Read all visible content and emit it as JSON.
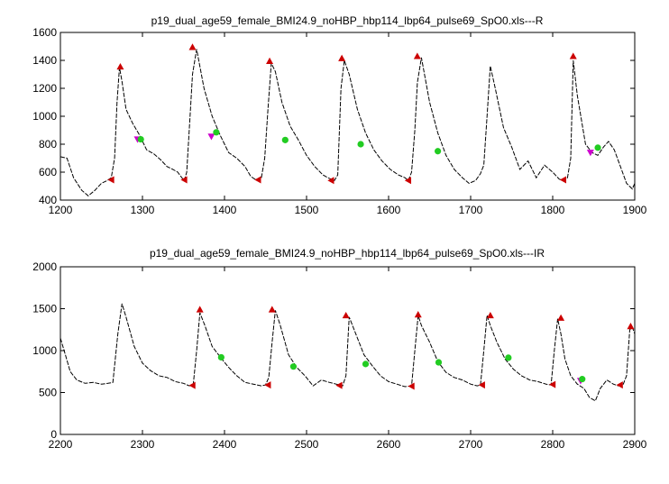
{
  "chart_data": [
    {
      "type": "line",
      "title": "p19_dual_age59_female_BMI24.9_noHBP_hbp114_lbp64_pulse69_SpO0.xls---R",
      "xlim": [
        1200,
        1900
      ],
      "ylim": [
        400,
        1600
      ],
      "xticks": [
        1200,
        1300,
        1400,
        1500,
        1600,
        1700,
        1800,
        1900
      ],
      "yticks": [
        400,
        600,
        800,
        1000,
        1200,
        1400,
        1600
      ],
      "grid": false,
      "series": [
        {
          "kind": "signal",
          "x": [
            1200,
            1208,
            1216,
            1226,
            1234,
            1242,
            1250,
            1257,
            1262,
            1266,
            1269,
            1272,
            1275,
            1280,
            1288,
            1296,
            1305,
            1314,
            1322,
            1330,
            1337,
            1343,
            1348,
            1351,
            1354,
            1358,
            1361,
            1366,
            1375,
            1385,
            1395,
            1405,
            1415,
            1425,
            1432,
            1437,
            1441,
            1445,
            1449,
            1453,
            1457,
            1462,
            1470,
            1480,
            1490,
            1500,
            1510,
            1520,
            1526,
            1530,
            1534,
            1538,
            1542,
            1546,
            1552,
            1562,
            1572,
            1582,
            1592,
            1602,
            1612,
            1620,
            1624,
            1628,
            1632,
            1635,
            1640,
            1650,
            1660,
            1670,
            1680,
            1690,
            1698,
            1706,
            1712,
            1716,
            1720,
            1724,
            1730,
            1740,
            1750,
            1760,
            1770,
            1780,
            1790,
            1800,
            1808,
            1813,
            1818,
            1822,
            1825,
            1830,
            1840,
            1848,
            1855,
            1862,
            1868,
            1875,
            1882,
            1890,
            1897,
            1900
          ],
          "y": [
            710,
            700,
            560,
            470,
            430,
            470,
            520,
            540,
            560,
            700,
            1100,
            1350,
            1250,
            1050,
            950,
            870,
            760,
            730,
            690,
            640,
            620,
            600,
            560,
            540,
            600,
            1000,
            1300,
            1480,
            1200,
            1000,
            860,
            740,
            700,
            640,
            570,
            550,
            540,
            560,
            700,
            1050,
            1380,
            1320,
            1100,
            930,
            830,
            720,
            640,
            580,
            560,
            550,
            540,
            580,
            1200,
            1400,
            1300,
            1050,
            880,
            760,
            680,
            620,
            580,
            560,
            540,
            600,
            900,
            1240,
            1420,
            1100,
            880,
            720,
            620,
            560,
            520,
            540,
            590,
            650,
            1000,
            1360,
            1200,
            920,
            780,
            620,
            680,
            560,
            650,
            600,
            550,
            540,
            560,
            700,
            1400,
            1150,
            800,
            740,
            720,
            780,
            820,
            760,
            650,
            520,
            480,
            520
          ]
        },
        {
          "kind": "marker",
          "name": "valley",
          "color": "#cc0000",
          "marker": "triangle-left",
          "x": [
            1262,
            1351,
            1441,
            1530,
            1624,
            1813
          ],
          "y": [
            545,
            545,
            545,
            540,
            540,
            545
          ]
        },
        {
          "kind": "marker",
          "name": "peak",
          "color": "#cc0000",
          "marker": "triangle-up",
          "x": [
            1273,
            1361,
            1455,
            1543,
            1635,
            1825
          ],
          "y": [
            1355,
            1495,
            1395,
            1415,
            1430,
            1430
          ]
        },
        {
          "kind": "marker",
          "name": "dicrotic",
          "color": "#cc00cc",
          "marker": "triangle-down",
          "x": [
            1294,
            1384,
            1846
          ],
          "y": [
            835,
            855,
            740
          ]
        },
        {
          "kind": "marker",
          "name": "point",
          "color": "#22cc22",
          "marker": "circle",
          "x": [
            1298,
            1390,
            1474,
            1566,
            1660,
            1855
          ],
          "y": [
            835,
            885,
            830,
            800,
            750,
            775
          ]
        }
      ]
    },
    {
      "type": "line",
      "title": "p19_dual_age59_female_BMI24.9_noHBP_hbp114_lbp64_pulse69_SpO0.xls---IR",
      "xlim": [
        2200,
        2900
      ],
      "ylim": [
        0,
        2000
      ],
      "xticks": [
        2200,
        2300,
        2400,
        2500,
        2600,
        2700,
        2800,
        2900
      ],
      "yticks": [
        0,
        500,
        1000,
        1500,
        2000
      ],
      "grid": false,
      "series": [
        {
          "kind": "signal",
          "x": [
            2200,
            2206,
            2212,
            2220,
            2230,
            2240,
            2250,
            2258,
            2264,
            2270,
            2275,
            2280,
            2290,
            2300,
            2310,
            2320,
            2330,
            2340,
            2350,
            2357,
            2362,
            2366,
            2370,
            2376,
            2385,
            2395,
            2405,
            2415,
            2425,
            2435,
            2445,
            2450,
            2454,
            2458,
            2462,
            2468,
            2478,
            2488,
            2498,
            2508,
            2518,
            2528,
            2536,
            2540,
            2544,
            2548,
            2552,
            2560,
            2570,
            2580,
            2590,
            2600,
            2610,
            2620,
            2628,
            2632,
            2636,
            2640,
            2650,
            2660,
            2670,
            2680,
            2690,
            2700,
            2708,
            2712,
            2716,
            2720,
            2724,
            2732,
            2742,
            2752,
            2762,
            2772,
            2782,
            2792,
            2798,
            2802,
            2806,
            2810,
            2815,
            2822,
            2830,
            2838,
            2845,
            2852,
            2858,
            2866,
            2874,
            2880,
            2886,
            2890,
            2894,
            2897,
            2900
          ],
          "y": [
            1150,
            950,
            750,
            650,
            610,
            620,
            600,
            610,
            620,
            1200,
            1560,
            1400,
            1050,
            850,
            760,
            700,
            680,
            630,
            610,
            580,
            600,
            1000,
            1450,
            1300,
            1050,
            920,
            800,
            700,
            620,
            600,
            580,
            590,
            680,
            1100,
            1480,
            1300,
            950,
            800,
            700,
            580,
            650,
            620,
            600,
            590,
            580,
            700,
            1400,
            1200,
            950,
            820,
            700,
            630,
            600,
            570,
            580,
            1000,
            1420,
            1300,
            1100,
            870,
            740,
            680,
            650,
            600,
            580,
            590,
            1000,
            1420,
            1300,
            1100,
            900,
            780,
            700,
            650,
            630,
            600,
            590,
            1000,
            1380,
            1200,
            900,
            700,
            600,
            550,
            440,
            400,
            550,
            650,
            600,
            580,
            600,
            700,
            1250,
            1280,
            1200
          ]
        },
        {
          "kind": "marker",
          "name": "valley",
          "color": "#cc0000",
          "marker": "triangle-left",
          "x": [
            2361,
            2453,
            2540,
            2628,
            2714,
            2800,
            2882
          ],
          "y": [
            585,
            590,
            585,
            575,
            590,
            595,
            590
          ]
        },
        {
          "kind": "marker",
          "name": "peak",
          "color": "#cc0000",
          "marker": "triangle-up",
          "x": [
            2370,
            2458,
            2548,
            2636,
            2724,
            2810,
            2895
          ],
          "y": [
            1490,
            1490,
            1420,
            1430,
            1420,
            1390,
            1290
          ]
        },
        {
          "kind": "marker",
          "name": "dicrotic",
          "color": "#cc00cc",
          "marker": "triangle-down",
          "x": [
            2834
          ],
          "y": [
            640
          ]
        },
        {
          "kind": "marker",
          "name": "point",
          "color": "#22cc22",
          "marker": "circle",
          "x": [
            2396,
            2484,
            2572,
            2661,
            2746,
            2836
          ],
          "y": [
            920,
            810,
            840,
            860,
            915,
            660
          ]
        }
      ]
    }
  ]
}
